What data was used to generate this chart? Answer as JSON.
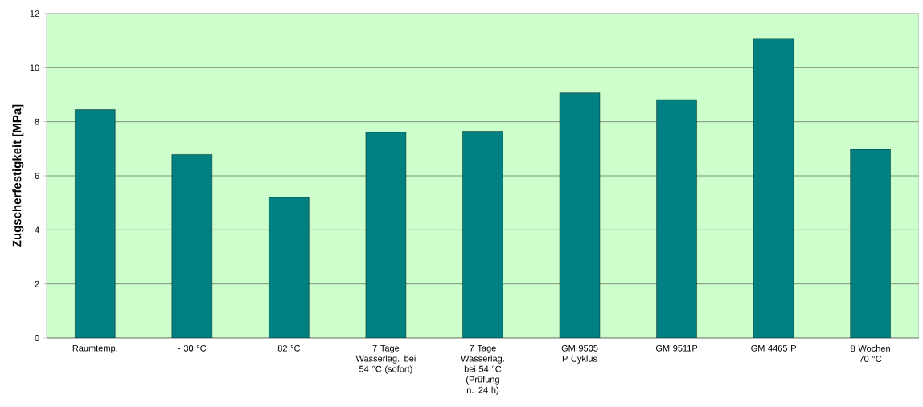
{
  "chart_data": {
    "type": "bar",
    "ylabel": "Zugscherfestigkeit [MPa]",
    "categories": [
      "Raumtemp.",
      "- 30 °C",
      "82 °C",
      "7 Tage Wasserlag. bei 54 °C (sofort)",
      "7 Tage Wasserlag. bei 54 °C (Prüfung n. 24 h)",
      "GM 9505 P Cyklus",
      "GM 9511P",
      "GM 4465 P",
      "8 Wochen 70 °C"
    ],
    "values": [
      8.45,
      6.79,
      5.2,
      7.61,
      7.65,
      9.07,
      8.82,
      11.09,
      6.98
    ],
    "color": "#008080",
    "ylim": [
      0,
      12
    ],
    "yticks": [
      0,
      2,
      4,
      6,
      8,
      10,
      12
    ],
    "grid": "y"
  }
}
